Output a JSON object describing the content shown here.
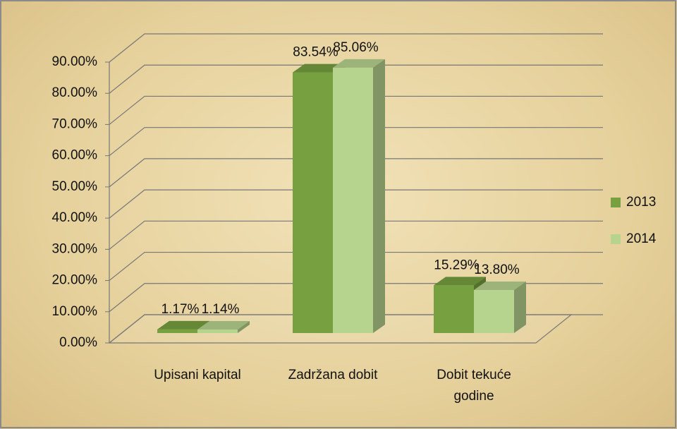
{
  "chart_data": {
    "type": "bar3d",
    "categories": [
      "Upisani kapital",
      "Zadržana dobit",
      "Dobit tekuće godine"
    ],
    "series": [
      {
        "name": "2013",
        "color": "#77a040",
        "values": [
          1.17,
          83.54,
          15.29
        ],
        "value_labels": [
          "1.17%",
          "83.54%",
          "15.29%"
        ]
      },
      {
        "name": "2014",
        "color": "#b7d48f",
        "values": [
          1.14,
          85.06,
          13.8
        ],
        "value_labels": [
          "1.14%",
          "85.06%",
          "13.80%"
        ]
      }
    ],
    "ylim": [
      0,
      90
    ],
    "yticks": [
      {
        "value": 0,
        "label": "0.00%"
      },
      {
        "value": 10,
        "label": "10.00%"
      },
      {
        "value": 20,
        "label": "20.00%"
      },
      {
        "value": 30,
        "label": "30.00%"
      },
      {
        "value": 40,
        "label": "40.00%"
      },
      {
        "value": 50,
        "label": "50.00%"
      },
      {
        "value": 60,
        "label": "60.00%"
      },
      {
        "value": 70,
        "label": "70.00%"
      },
      {
        "value": 80,
        "label": "80.00%"
      },
      {
        "value": 90,
        "label": "90.00%"
      }
    ],
    "grid": true,
    "legend": "right"
  }
}
